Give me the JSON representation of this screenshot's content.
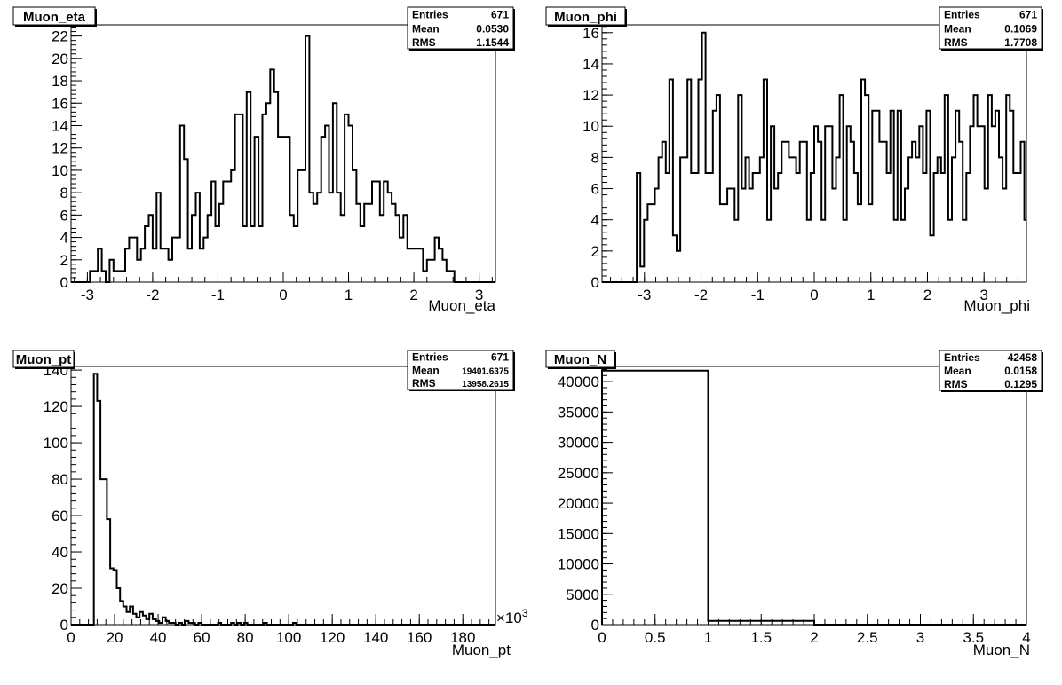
{
  "charts": [
    {
      "type": "histogram",
      "title": "Muon_eta",
      "xlabel": "Muon_eta",
      "xlim": [
        -3.25,
        3.25
      ],
      "ylim": [
        0,
        23
      ],
      "xticks": [
        "-3",
        "-2",
        "-1",
        "0",
        "1",
        "2",
        "3"
      ],
      "xtick_values": [
        -3,
        -2,
        -1,
        0,
        1,
        2,
        3
      ],
      "yticks": [
        "0",
        "2",
        "4",
        "6",
        "8",
        "10",
        "12",
        "14",
        "16",
        "18",
        "20",
        "22"
      ],
      "ytick_values": [
        0,
        2,
        4,
        6,
        8,
        10,
        12,
        14,
        16,
        18,
        20,
        22
      ],
      "stats": [
        {
          "label": "Entries",
          "value": "671"
        },
        {
          "label": "Mean",
          "value": "0.0530"
        },
        {
          "label": "RMS",
          "value": "1.1544"
        }
      ],
      "bins": {
        "xmin": -3.2,
        "width": 0.06
      },
      "values": [
        0,
        0,
        0,
        0,
        1,
        1,
        3,
        1,
        0,
        2,
        1,
        1,
        1,
        3,
        4,
        4,
        2,
        3,
        5,
        6,
        3,
        8,
        3,
        3,
        2,
        4,
        4,
        14,
        11,
        3,
        6,
        8,
        3,
        4,
        6,
        9,
        5,
        7,
        9,
        9,
        10,
        15,
        15,
        5,
        17,
        5,
        13,
        5,
        15,
        16,
        19,
        17,
        13,
        13,
        13,
        6,
        5,
        10,
        10,
        22,
        8,
        7,
        8,
        13,
        14,
        8,
        16,
        8,
        6,
        15,
        14,
        10,
        7,
        5,
        7,
        7,
        9,
        9,
        6,
        9,
        8,
        7,
        6,
        4,
        6,
        3,
        3,
        3,
        3,
        1,
        2,
        2,
        4,
        3,
        2,
        1,
        1,
        0,
        0,
        0,
        0,
        0,
        0,
        0,
        0
      ]
    },
    {
      "type": "histogram",
      "title": "Muon_phi",
      "xlabel": "Muon_phi",
      "xlim": [
        -3.75,
        3.75
      ],
      "ylim": [
        0,
        16.5
      ],
      "xticks": [
        "-3",
        "-2",
        "-1",
        "0",
        "1",
        "2",
        "3"
      ],
      "xtick_values": [
        -3,
        -2,
        -1,
        0,
        1,
        2,
        3
      ],
      "yticks": [
        "0",
        "2",
        "4",
        "6",
        "8",
        "10",
        "12",
        "14",
        "16"
      ],
      "ytick_values": [
        0,
        2,
        4,
        6,
        8,
        10,
        12,
        14,
        16
      ],
      "stats": [
        {
          "label": "Entries",
          "value": "671"
        },
        {
          "label": "Mean",
          "value": "0.1069"
        },
        {
          "label": "RMS",
          "value": "1.7708"
        }
      ],
      "bins": {
        "xmin": -3.2,
        "width": 0.064
      },
      "values": [
        0,
        7,
        1,
        4,
        5,
        5,
        6,
        8,
        9,
        7,
        13,
        3,
        2,
        8,
        8,
        13,
        7,
        7,
        13,
        16,
        7,
        7,
        11,
        12,
        5,
        5,
        6,
        6,
        4,
        12,
        6,
        8,
        6,
        7,
        7,
        8,
        13,
        4,
        10,
        6,
        7,
        9,
        9,
        8,
        8,
        7,
        9,
        9,
        4,
        7,
        10,
        9,
        4,
        10,
        10,
        6,
        8,
        12,
        4,
        10,
        9,
        7,
        5,
        13,
        12,
        5,
        11,
        11,
        9,
        9,
        7,
        11,
        4,
        11,
        4,
        6,
        8,
        9,
        8,
        10,
        7,
        11,
        3,
        7,
        8,
        7,
        12,
        4,
        8,
        11,
        9,
        4,
        7,
        10,
        12,
        10,
        10,
        6,
        12,
        10,
        11,
        8,
        6,
        12,
        11,
        7,
        7,
        9,
        4,
        0
      ]
    },
    {
      "type": "histogram",
      "title": "Muon_pt",
      "xlabel": "Muon_pt",
      "xlim": [
        0,
        195
      ],
      "ylim": [
        0,
        142
      ],
      "exponent_label": "×10",
      "exponent_power": "3",
      "xticks": [
        "0",
        "20",
        "40",
        "60",
        "80",
        "100",
        "120",
        "140",
        "160",
        "180"
      ],
      "xtick_values": [
        0,
        20,
        40,
        60,
        80,
        100,
        120,
        140,
        160,
        180
      ],
      "yticks": [
        "0",
        "20",
        "40",
        "60",
        "80",
        "100",
        "120",
        "140"
      ],
      "ytick_values": [
        0,
        20,
        40,
        60,
        80,
        100,
        120,
        140
      ],
      "stats": [
        {
          "label": "Entries",
          "value": "671"
        },
        {
          "label": "Mean",
          "value": "19401.6375"
        },
        {
          "label": "RMS",
          "value": "13958.2615"
        }
      ],
      "bins": {
        "xmin": 0,
        "width": 1.5
      },
      "values": [
        0,
        0,
        0,
        0,
        0,
        0,
        0,
        138,
        123,
        80,
        80,
        58,
        31,
        30,
        20,
        13,
        10,
        7,
        10,
        6,
        4,
        7,
        5,
        3,
        6,
        3,
        2,
        1,
        4,
        2,
        1,
        1,
        0,
        1,
        0,
        2,
        1,
        1,
        0,
        1,
        0,
        0,
        0,
        0,
        0,
        1,
        0,
        0,
        0,
        1,
        0,
        1,
        0,
        1,
        0,
        0,
        0,
        0,
        0,
        1,
        0,
        0,
        0,
        0,
        0,
        0,
        0,
        0,
        1,
        0,
        0,
        0,
        0,
        0,
        0,
        0,
        0,
        0,
        0,
        0,
        0,
        0,
        0,
        0,
        0,
        0,
        0,
        0,
        0,
        0,
        0,
        0,
        0,
        0,
        0,
        0,
        0,
        0,
        0,
        0,
        0,
        0,
        0,
        0,
        0,
        0,
        0,
        0,
        0,
        0,
        0,
        0,
        0,
        0,
        0,
        0,
        0,
        0,
        0,
        0,
        0,
        0,
        0,
        0,
        0,
        0,
        0,
        0,
        0,
        0,
        0
      ]
    },
    {
      "type": "histogram",
      "title": "Muon_N",
      "xlabel": "Muon_N",
      "xlim": [
        0,
        4
      ],
      "ylim": [
        0,
        42500
      ],
      "xticks": [
        "0",
        "0.5",
        "1",
        "1.5",
        "2",
        "2.5",
        "3",
        "3.5",
        "4"
      ],
      "xtick_values": [
        0,
        0.5,
        1,
        1.5,
        2,
        2.5,
        3,
        3.5,
        4
      ],
      "yticks": [
        "0",
        "5000",
        "10000",
        "15000",
        "20000",
        "25000",
        "30000",
        "35000",
        "40000"
      ],
      "ytick_values": [
        0,
        5000,
        10000,
        15000,
        20000,
        25000,
        30000,
        35000,
        40000
      ],
      "stats": [
        {
          "label": "Entries",
          "value": "42458"
        },
        {
          "label": "Mean",
          "value": "0.0158"
        },
        {
          "label": "RMS",
          "value": "0.1295"
        }
      ],
      "bins": {
        "xmin": 0,
        "width": 1
      },
      "values": [
        41800,
        630,
        0,
        0
      ]
    }
  ],
  "chart_data": [
    {
      "type": "bar",
      "title": "Muon_eta",
      "xlabel": "Muon_eta",
      "ylabel": "",
      "ylim": [
        0,
        23
      ],
      "xlim": [
        -3.25,
        3.25
      ]
    },
    {
      "type": "bar",
      "title": "Muon_phi",
      "xlabel": "Muon_phi",
      "ylabel": "",
      "ylim": [
        0,
        16.5
      ],
      "xlim": [
        -3.75,
        3.75
      ]
    },
    {
      "type": "bar",
      "title": "Muon_pt",
      "xlabel": "Muon_pt",
      "ylabel": "",
      "ylim": [
        0,
        142
      ],
      "xlim": [
        0,
        195
      ]
    },
    {
      "type": "bar",
      "title": "Muon_N",
      "xlabel": "Muon_N",
      "ylabel": "",
      "ylim": [
        0,
        42500
      ],
      "xlim": [
        0,
        4
      ]
    }
  ]
}
